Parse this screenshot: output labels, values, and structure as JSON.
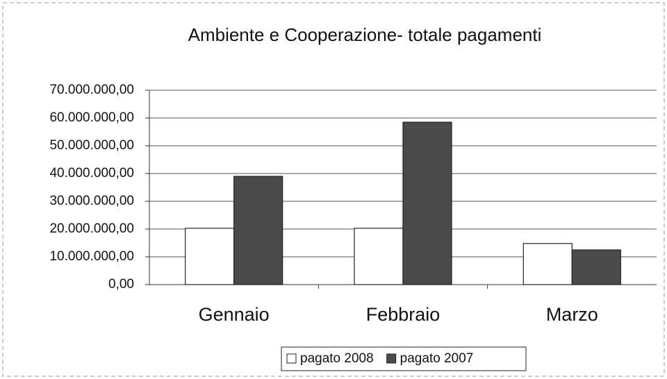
{
  "chart_data": {
    "type": "bar",
    "title": "Ambiente e Cooperazione- totale pagamenti",
    "categories": [
      "Gennaio",
      "Febbraio",
      "Marzo"
    ],
    "series": [
      {
        "name": "pagato 2008",
        "color": "#ffffff",
        "values": [
          20300000,
          20300000,
          14800000
        ]
      },
      {
        "name": "pagato 2007",
        "color": "#4a4a4a",
        "values": [
          39000000,
          58500000,
          12500000
        ]
      }
    ],
    "ylim": [
      0,
      70000000
    ],
    "yticks": [
      {
        "value": 0,
        "label": "0,00"
      },
      {
        "value": 10000000,
        "label": "10.000.000,00"
      },
      {
        "value": 20000000,
        "label": "20.000.000,00"
      },
      {
        "value": 30000000,
        "label": "30.000.000,00"
      },
      {
        "value": 40000000,
        "label": "40.000.000,00"
      },
      {
        "value": 50000000,
        "label": "50.000.000,00"
      },
      {
        "value": 60000000,
        "label": "60.000.000,00"
      },
      {
        "value": 70000000,
        "label": "70.000.000,00"
      }
    ],
    "grid": true,
    "legend": "bottom"
  }
}
